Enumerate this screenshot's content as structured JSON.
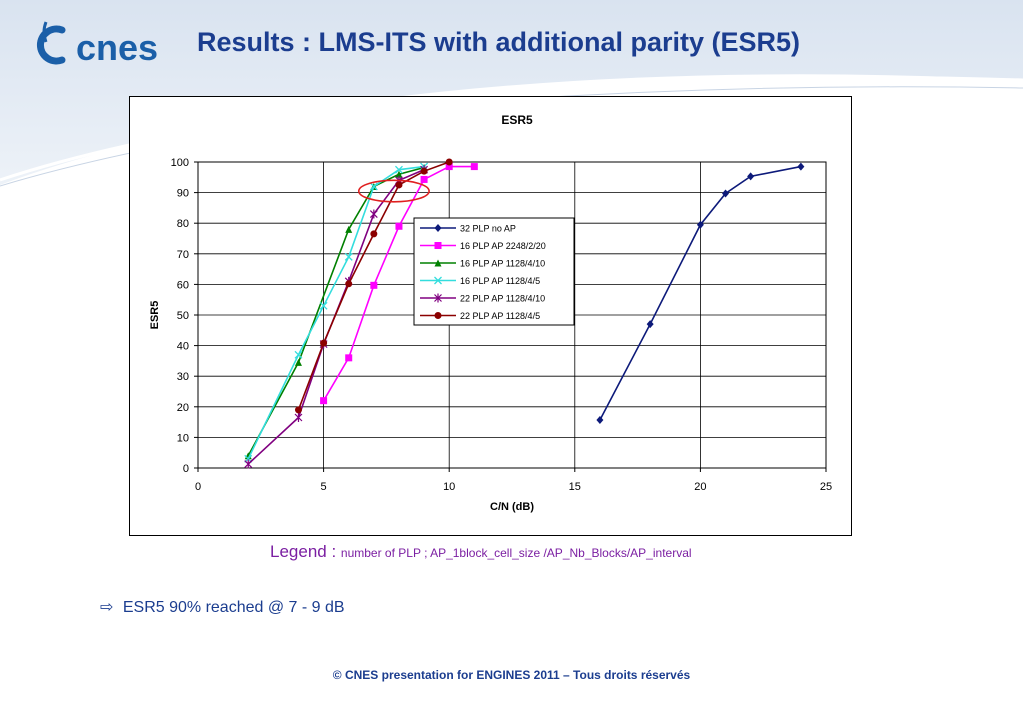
{
  "slide": {
    "title": "Results : LMS-ITS with additional parity (ESR5)",
    "logo_text": "cnes",
    "legend_label": "Legend : ",
    "legend_text": "number of PLP ;   AP_1block_cell_size /AP_Nb_Blocks/AP_interval",
    "bullet_icon": "arrow-right-outline-icon",
    "bullet_text": "ESR5 90% reached @ 7 - 9 dB",
    "footer": "© CNES presentation for ENGINES 2011 – Tous droits réservés"
  },
  "colors": {
    "title": "#1b3d8f",
    "legend_note": "#7b1fa2",
    "highlight_ellipse": "#e02020"
  },
  "chart_data": {
    "type": "line",
    "title": "ESR5",
    "xlabel": "C/N (dB)",
    "ylabel": "ESR5",
    "xlim": [
      0,
      25
    ],
    "ylim": [
      0,
      100
    ],
    "xticks": [
      0,
      5,
      10,
      15,
      20,
      25
    ],
    "yticks": [
      0,
      10,
      20,
      30,
      40,
      50,
      60,
      70,
      80,
      90,
      100
    ],
    "grid": true,
    "legend_position": "center",
    "annotation": {
      "type": "ellipse",
      "x_center": 7.8,
      "y_center": 90.5,
      "x_radius": 1.4,
      "y_radius": 3.5
    },
    "series": [
      {
        "name": "32 PLP no AP",
        "color": "#0d1a7a",
        "marker": "diamond",
        "x": [
          16,
          18,
          20,
          21,
          22,
          24
        ],
        "y": [
          15.7,
          47,
          79.5,
          89.7,
          95.3,
          98.5
        ]
      },
      {
        "name": "16 PLP AP 2248/2/20",
        "color": "#ff00ff",
        "marker": "square",
        "x": [
          5,
          6,
          7,
          8,
          9,
          10,
          11
        ],
        "y": [
          22,
          36,
          59.7,
          79,
          94.3,
          98.5,
          98.5
        ]
      },
      {
        "name": "16 PLP AP 1128/4/10",
        "color": "#008000",
        "marker": "triangle",
        "x": [
          2,
          4,
          6,
          7,
          8,
          9
        ],
        "y": [
          4,
          34.5,
          78,
          92,
          96,
          98.2
        ]
      },
      {
        "name": "16 PLP AP 1128/4/5",
        "color": "#33dddd",
        "marker": "x",
        "x": [
          2,
          4,
          5,
          6,
          7,
          8,
          9
        ],
        "y": [
          3,
          37,
          53,
          69,
          92,
          97.5,
          98.5
        ]
      },
      {
        "name": "22 PLP AP 1128/4/10",
        "color": "#800080",
        "marker": "star",
        "x": [
          2,
          4,
          5,
          6,
          7,
          8,
          9
        ],
        "y": [
          1.3,
          16.5,
          40.5,
          61,
          83,
          94,
          97.5
        ]
      },
      {
        "name": "22 PLP AP 1128/4/5",
        "color": "#8b0000",
        "marker": "circle",
        "x": [
          4,
          5,
          6,
          7,
          8,
          9,
          10
        ],
        "y": [
          19,
          40.8,
          60.2,
          76.5,
          92.5,
          97,
          100
        ]
      }
    ]
  }
}
